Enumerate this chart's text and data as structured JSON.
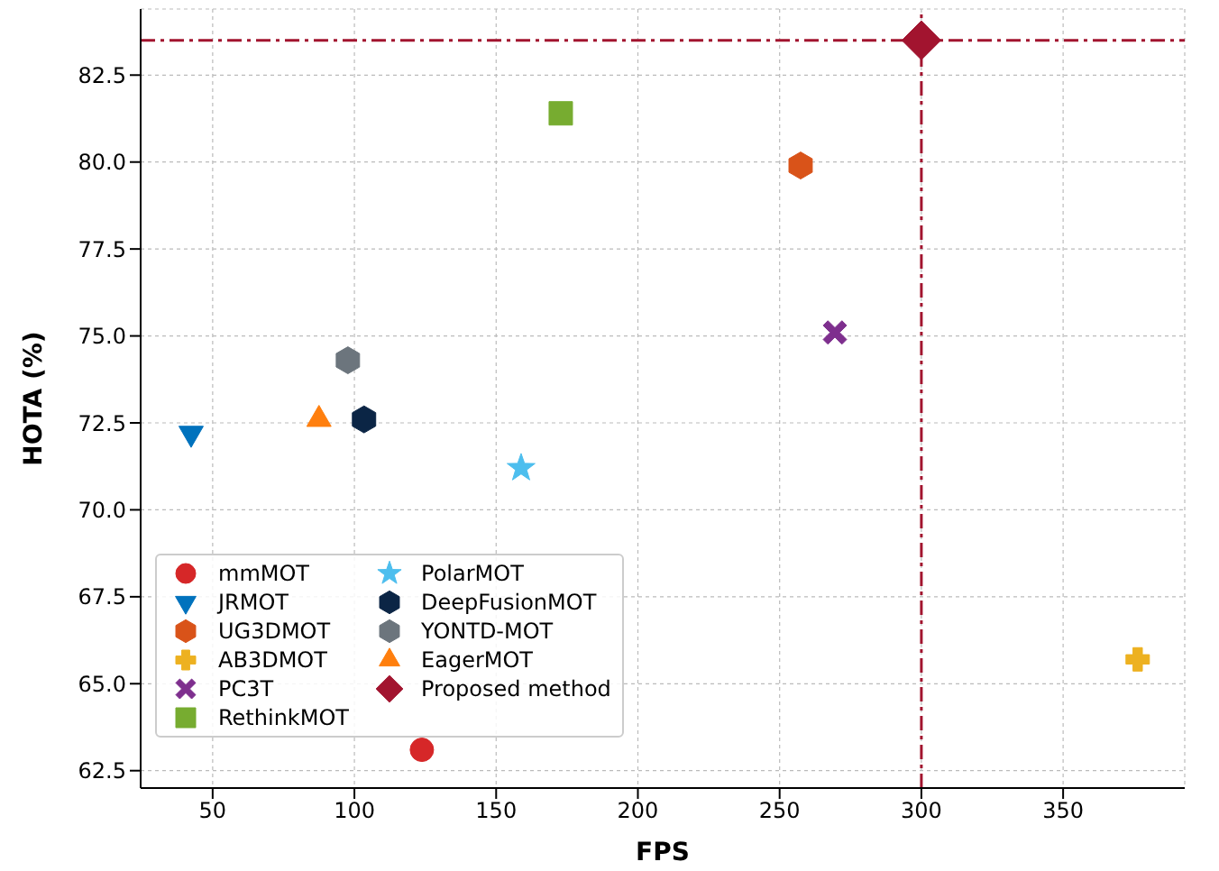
{
  "chart_data": {
    "type": "scatter",
    "xlabel": "FPS",
    "ylabel": "HOTA (%)",
    "xlim": [
      24.6,
      392.9
    ],
    "ylim": [
      62.0,
      84.4
    ],
    "xticks": [
      50,
      100,
      150,
      200,
      250,
      300,
      350
    ],
    "yticks": [
      {
        "value": 62.5,
        "label": "62.5"
      },
      {
        "value": 65,
        "label": "65.0"
      },
      {
        "value": 67.5,
        "label": "67.5"
      },
      {
        "value": 70,
        "label": "70.0"
      },
      {
        "value": 72.5,
        "label": "72.5"
      },
      {
        "value": 75,
        "label": "75.0"
      },
      {
        "value": 77.5,
        "label": "77.5"
      },
      {
        "value": 80,
        "label": "80.0"
      },
      {
        "value": 82.5,
        "label": "82.5"
      }
    ],
    "grid": true,
    "legend": "bottom left",
    "series": [
      {
        "name": "mmMOT",
        "color": "#d62728",
        "marker": "circle",
        "x": [
          123.8
        ],
        "values": [
          63.1
        ]
      },
      {
        "name": "JRMOT",
        "color": "#0072bd",
        "marker": "triangle-down",
        "x": [
          42.4
        ],
        "values": [
          72.2
        ]
      },
      {
        "name": "UG3DMOT",
        "color": "#d95319",
        "x": [
          257.4
        ],
        "values": [
          79.9
        ]
      },
      {
        "name": "AB3DMOT",
        "color": "#edb120",
        "marker": "plus",
        "x": [
          376.3
        ],
        "values": [
          65.7
        ]
      },
      {
        "name": "PC3T",
        "color": "#7e2f8e",
        "marker": "cross",
        "x": [
          269.5
        ],
        "values": [
          75.1
        ]
      },
      {
        "name": "RethinkMOT",
        "color": "#77ac30",
        "marker": "square",
        "x": [
          172.8
        ],
        "values": [
          81.4
        ]
      },
      {
        "name": "PolarMOT",
        "color": "#4dbeee",
        "marker": "star",
        "x": [
          158.8
        ],
        "values": [
          71.2
        ]
      },
      {
        "name": "DeepFusionMOT",
        "color": "#0b2545",
        "x": [
          103.4
        ],
        "values": [
          72.6
        ]
      },
      {
        "name": "YONTD-MOT",
        "color": "#6c757d",
        "x": [
          97.7
        ],
        "values": [
          74.3
        ]
      },
      {
        "name": "EagerMOT",
        "color": "#ff7f0e",
        "marker": "triangle",
        "x": [
          87.5
        ],
        "values": [
          72.6
        ]
      },
      {
        "name": "Proposed method",
        "color": "#a2142f",
        "marker": "diamond",
        "x": [
          300
        ],
        "values": [
          83.5
        ]
      }
    ],
    "ref_lines": [
      {
        "axis": "x",
        "value": 300,
        "color": "#a2142f",
        "line_style": "dashdot"
      },
      {
        "axis": "y",
        "value": 83.5,
        "color": "#a2142f",
        "line_style": "dashdot"
      }
    ]
  }
}
